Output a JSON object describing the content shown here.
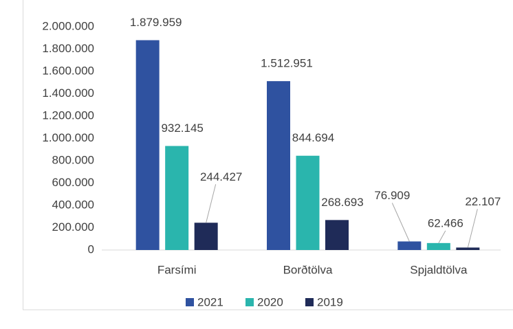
{
  "chart_data": {
    "type": "bar",
    "categories": [
      "Farsími",
      "Borðtölva",
      "Spjaldtölva"
    ],
    "series": [
      {
        "name": "2021",
        "color": "#2f52a0",
        "values": [
          1879959,
          1512951,
          76909
        ],
        "value_labels": [
          "1.879.959",
          "1.512.951",
          "76.909"
        ]
      },
      {
        "name": "2020",
        "color": "#2ab5ad",
        "values": [
          932145,
          844694,
          62466
        ],
        "value_labels": [
          "932.145",
          "844.694",
          "62.466"
        ]
      },
      {
        "name": "2019",
        "color": "#1f2b58",
        "values": [
          244427,
          268693,
          22107
        ],
        "value_labels": [
          "244.427",
          "268.693",
          "22.107"
        ]
      }
    ],
    "ylim": [
      0,
      2000000
    ],
    "yticks": [
      0,
      {
        "value": 200000,
        "label": "200.000"
      },
      {
        "value": 400000,
        "label": "400.000"
      },
      {
        "value": 600000,
        "label": "600.000"
      },
      {
        "value": 800000,
        "label": "800.000"
      },
      {
        "value": 1000000,
        "label": "1.000.000"
      },
      {
        "value": 1200000,
        "label": "1.200.000"
      },
      {
        "value": 1400000,
        "label": "1.400.000"
      },
      {
        "value": 1600000,
        "label": "1.600.000"
      },
      {
        "value": 1800000,
        "label": "1.800.000"
      },
      {
        "value": 2000000,
        "label": "2.000.000"
      }
    ],
    "grid": false,
    "legend": "bottom"
  }
}
